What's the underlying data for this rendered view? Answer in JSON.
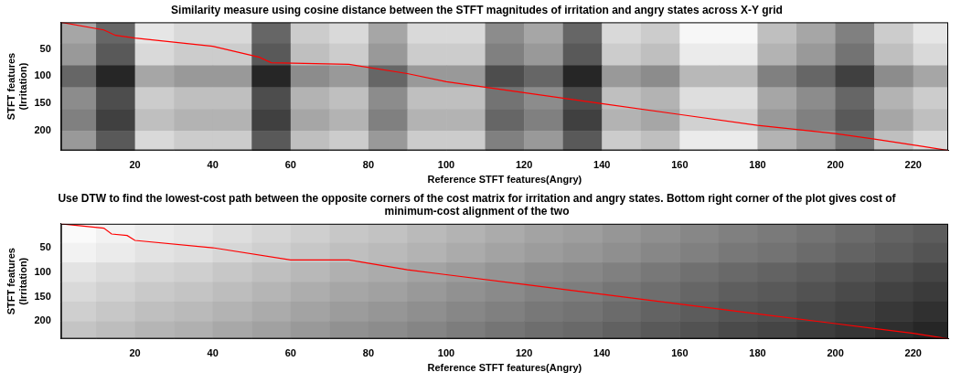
{
  "chart_data": [
    {
      "type": "heatmap",
      "title": "Similarity measure using cosine distance between the STFT magnitudes of irritation and angry states across X-Y grid",
      "x_label": "Reference STFT features(Angry)",
      "y_label": [
        "STFT features",
        "(Irritation)"
      ],
      "xlim": [
        1,
        229
      ],
      "xticks": [
        20,
        40,
        60,
        80,
        100,
        120,
        140,
        160,
        180,
        200,
        220
      ],
      "ylim": [
        236,
        1
      ],
      "yticks": [
        50,
        100,
        150,
        200
      ],
      "grid": false,
      "x_bins": [
        0,
        10,
        20,
        30,
        40,
        50,
        60,
        70,
        80,
        90,
        100,
        110,
        120,
        130,
        140,
        150,
        160,
        170,
        180,
        190,
        200,
        210,
        220,
        230
      ],
      "y_bins": [
        1,
        40,
        80,
        120,
        160,
        200,
        236
      ],
      "cells": [
        [
          0.65,
          0.4,
          0.9,
          0.85,
          0.85,
          0.4,
          0.8,
          0.85,
          0.65,
          0.85,
          0.85,
          0.55,
          0.65,
          0.4,
          0.85,
          0.8,
          0.97,
          0.97,
          0.75,
          0.65,
          0.5,
          0.8,
          0.9
        ],
        [
          0.6,
          0.35,
          0.85,
          0.8,
          0.8,
          0.35,
          0.75,
          0.8,
          0.6,
          0.8,
          0.8,
          0.5,
          0.6,
          0.35,
          0.8,
          0.75,
          0.92,
          0.92,
          0.7,
          0.6,
          0.45,
          0.75,
          0.85
        ],
        [
          0.4,
          0.15,
          0.65,
          0.6,
          0.6,
          0.15,
          0.55,
          0.6,
          0.4,
          0.6,
          0.6,
          0.3,
          0.4,
          0.15,
          0.6,
          0.55,
          0.72,
          0.72,
          0.5,
          0.4,
          0.25,
          0.55,
          0.65
        ],
        [
          0.55,
          0.3,
          0.8,
          0.75,
          0.75,
          0.3,
          0.7,
          0.75,
          0.55,
          0.75,
          0.75,
          0.45,
          0.55,
          0.3,
          0.75,
          0.7,
          0.87,
          0.87,
          0.65,
          0.55,
          0.4,
          0.7,
          0.8
        ],
        [
          0.5,
          0.25,
          0.75,
          0.7,
          0.7,
          0.25,
          0.65,
          0.7,
          0.5,
          0.7,
          0.7,
          0.4,
          0.5,
          0.25,
          0.7,
          0.65,
          0.82,
          0.82,
          0.6,
          0.5,
          0.35,
          0.65,
          0.75
        ],
        [
          0.6,
          0.35,
          0.85,
          0.8,
          0.8,
          0.35,
          0.75,
          0.8,
          0.6,
          0.8,
          0.8,
          0.5,
          0.6,
          0.35,
          0.8,
          0.75,
          0.92,
          0.92,
          0.7,
          0.6,
          0.45,
          0.75,
          0.85
        ]
      ],
      "series": [
        {
          "type": "line",
          "color": "#ff0000",
          "x": [
            1,
            12,
            15,
            20,
            40,
            52,
            55,
            75,
            90,
            100,
            120,
            140,
            160,
            180,
            200,
            210,
            222,
            229
          ],
          "values": [
            1,
            15,
            25,
            30,
            45,
            65,
            75,
            78,
            95,
            110,
            130,
            150,
            170,
            190,
            205,
            215,
            228,
            236
          ]
        }
      ]
    },
    {
      "type": "heatmap",
      "title": "Use DTW to find the lowest-cost path between the opposite corners of the cost matrix for irritation and angry states. Bottom right corner of the plot gives cost of minimum-cost alignment of the two",
      "x_label": "Reference STFT features(Angry)",
      "y_label": [
        "STFT features",
        "(Irritation)"
      ],
      "xlim": [
        1,
        229
      ],
      "xticks": [
        20,
        40,
        60,
        80,
        100,
        120,
        140,
        160,
        180,
        200,
        220
      ],
      "ylim": [
        236,
        1
      ],
      "yticks": [
        50,
        100,
        150,
        200
      ],
      "grid": false,
      "x_bins": [
        0,
        10,
        20,
        30,
        40,
        50,
        60,
        70,
        80,
        90,
        100,
        110,
        120,
        130,
        140,
        150,
        160,
        170,
        180,
        190,
        200,
        210,
        220,
        230
      ],
      "y_bins": [
        1,
        40,
        80,
        120,
        160,
        200,
        236
      ],
      "cells": [
        [
          0.98,
          0.95,
          0.92,
          0.9,
          0.87,
          0.84,
          0.81,
          0.78,
          0.76,
          0.73,
          0.7,
          0.67,
          0.64,
          0.62,
          0.59,
          0.56,
          0.53,
          0.5,
          0.48,
          0.45,
          0.42,
          0.39,
          0.36
        ],
        [
          0.95,
          0.92,
          0.89,
          0.87,
          0.84,
          0.81,
          0.78,
          0.75,
          0.73,
          0.7,
          0.67,
          0.64,
          0.61,
          0.59,
          0.56,
          0.53,
          0.5,
          0.47,
          0.45,
          0.42,
          0.39,
          0.36,
          0.33
        ],
        [
          0.89,
          0.86,
          0.83,
          0.81,
          0.78,
          0.75,
          0.72,
          0.69,
          0.67,
          0.64,
          0.61,
          0.58,
          0.55,
          0.53,
          0.5,
          0.47,
          0.44,
          0.41,
          0.39,
          0.36,
          0.33,
          0.3,
          0.27
        ],
        [
          0.85,
          0.82,
          0.79,
          0.77,
          0.74,
          0.71,
          0.68,
          0.65,
          0.63,
          0.6,
          0.57,
          0.54,
          0.51,
          0.49,
          0.46,
          0.43,
          0.4,
          0.37,
          0.35,
          0.32,
          0.29,
          0.26,
          0.23
        ],
        [
          0.81,
          0.78,
          0.75,
          0.73,
          0.7,
          0.67,
          0.64,
          0.61,
          0.59,
          0.56,
          0.53,
          0.5,
          0.47,
          0.45,
          0.42,
          0.39,
          0.36,
          0.33,
          0.31,
          0.28,
          0.25,
          0.22,
          0.19
        ],
        [
          0.77,
          0.74,
          0.71,
          0.69,
          0.66,
          0.63,
          0.6,
          0.57,
          0.55,
          0.52,
          0.49,
          0.46,
          0.43,
          0.41,
          0.38,
          0.35,
          0.32,
          0.29,
          0.27,
          0.24,
          0.21,
          0.18,
          0.15
        ]
      ],
      "series": [
        {
          "type": "line",
          "color": "#ff0000",
          "x": [
            1,
            12,
            14,
            18,
            20,
            40,
            60,
            75,
            90,
            100,
            120,
            140,
            160,
            180,
            200,
            210,
            220,
            229
          ],
          "values": [
            1,
            10,
            22,
            25,
            35,
            50,
            75,
            75,
            95,
            105,
            125,
            145,
            165,
            185,
            205,
            215,
            225,
            236
          ]
        }
      ]
    }
  ]
}
